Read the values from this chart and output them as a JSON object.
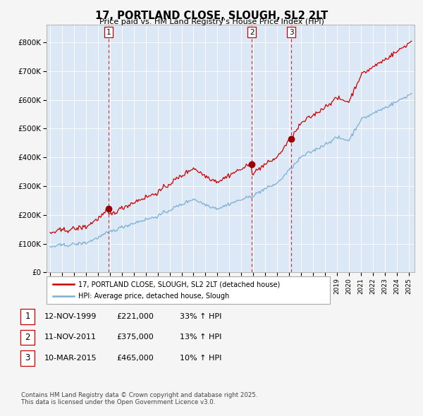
{
  "title": "17, PORTLAND CLOSE, SLOUGH, SL2 2LT",
  "subtitle": "Price paid vs. HM Land Registry's House Price Index (HPI)",
  "sale_prices": [
    221000,
    375000,
    465000
  ],
  "sale_labels": [
    "1",
    "2",
    "3"
  ],
  "sale_pcts": [
    "33% ↑ HPI",
    "13% ↑ HPI",
    "10% ↑ HPI"
  ],
  "sale_date_strs": [
    "12-NOV-1999",
    "11-NOV-2011",
    "10-MAR-2015"
  ],
  "sale_price_strs": [
    "£221,000",
    "£375,000",
    "£465,000"
  ],
  "sale_times": [
    1999.878,
    2011.878,
    2015.192
  ],
  "ytick_values": [
    0,
    100000,
    200000,
    300000,
    400000,
    500000,
    600000,
    700000,
    800000
  ],
  "ytick_labels": [
    "£0",
    "£100K",
    "£200K",
    "£300K",
    "£400K",
    "£500K",
    "£600K",
    "£700K",
    "£800K"
  ],
  "line_color_paid": "#cc0000",
  "line_color_hpi": "#7bafd4",
  "plot_bg_color": "#dce8f5",
  "background_color": "#f0f0f0",
  "fig_bg_color": "#f5f5f5",
  "grid_color": "#ffffff",
  "legend_label_paid": "17, PORTLAND CLOSE, SLOUGH, SL2 2LT (detached house)",
  "legend_label_hpi": "HPI: Average price, detached house, Slough",
  "footer": "Contains HM Land Registry data © Crown copyright and database right 2025.\nThis data is licensed under the Open Government Licence v3.0.",
  "xmin": 1994.7,
  "xmax": 2025.5,
  "ymin": 0,
  "ymax": 860000
}
